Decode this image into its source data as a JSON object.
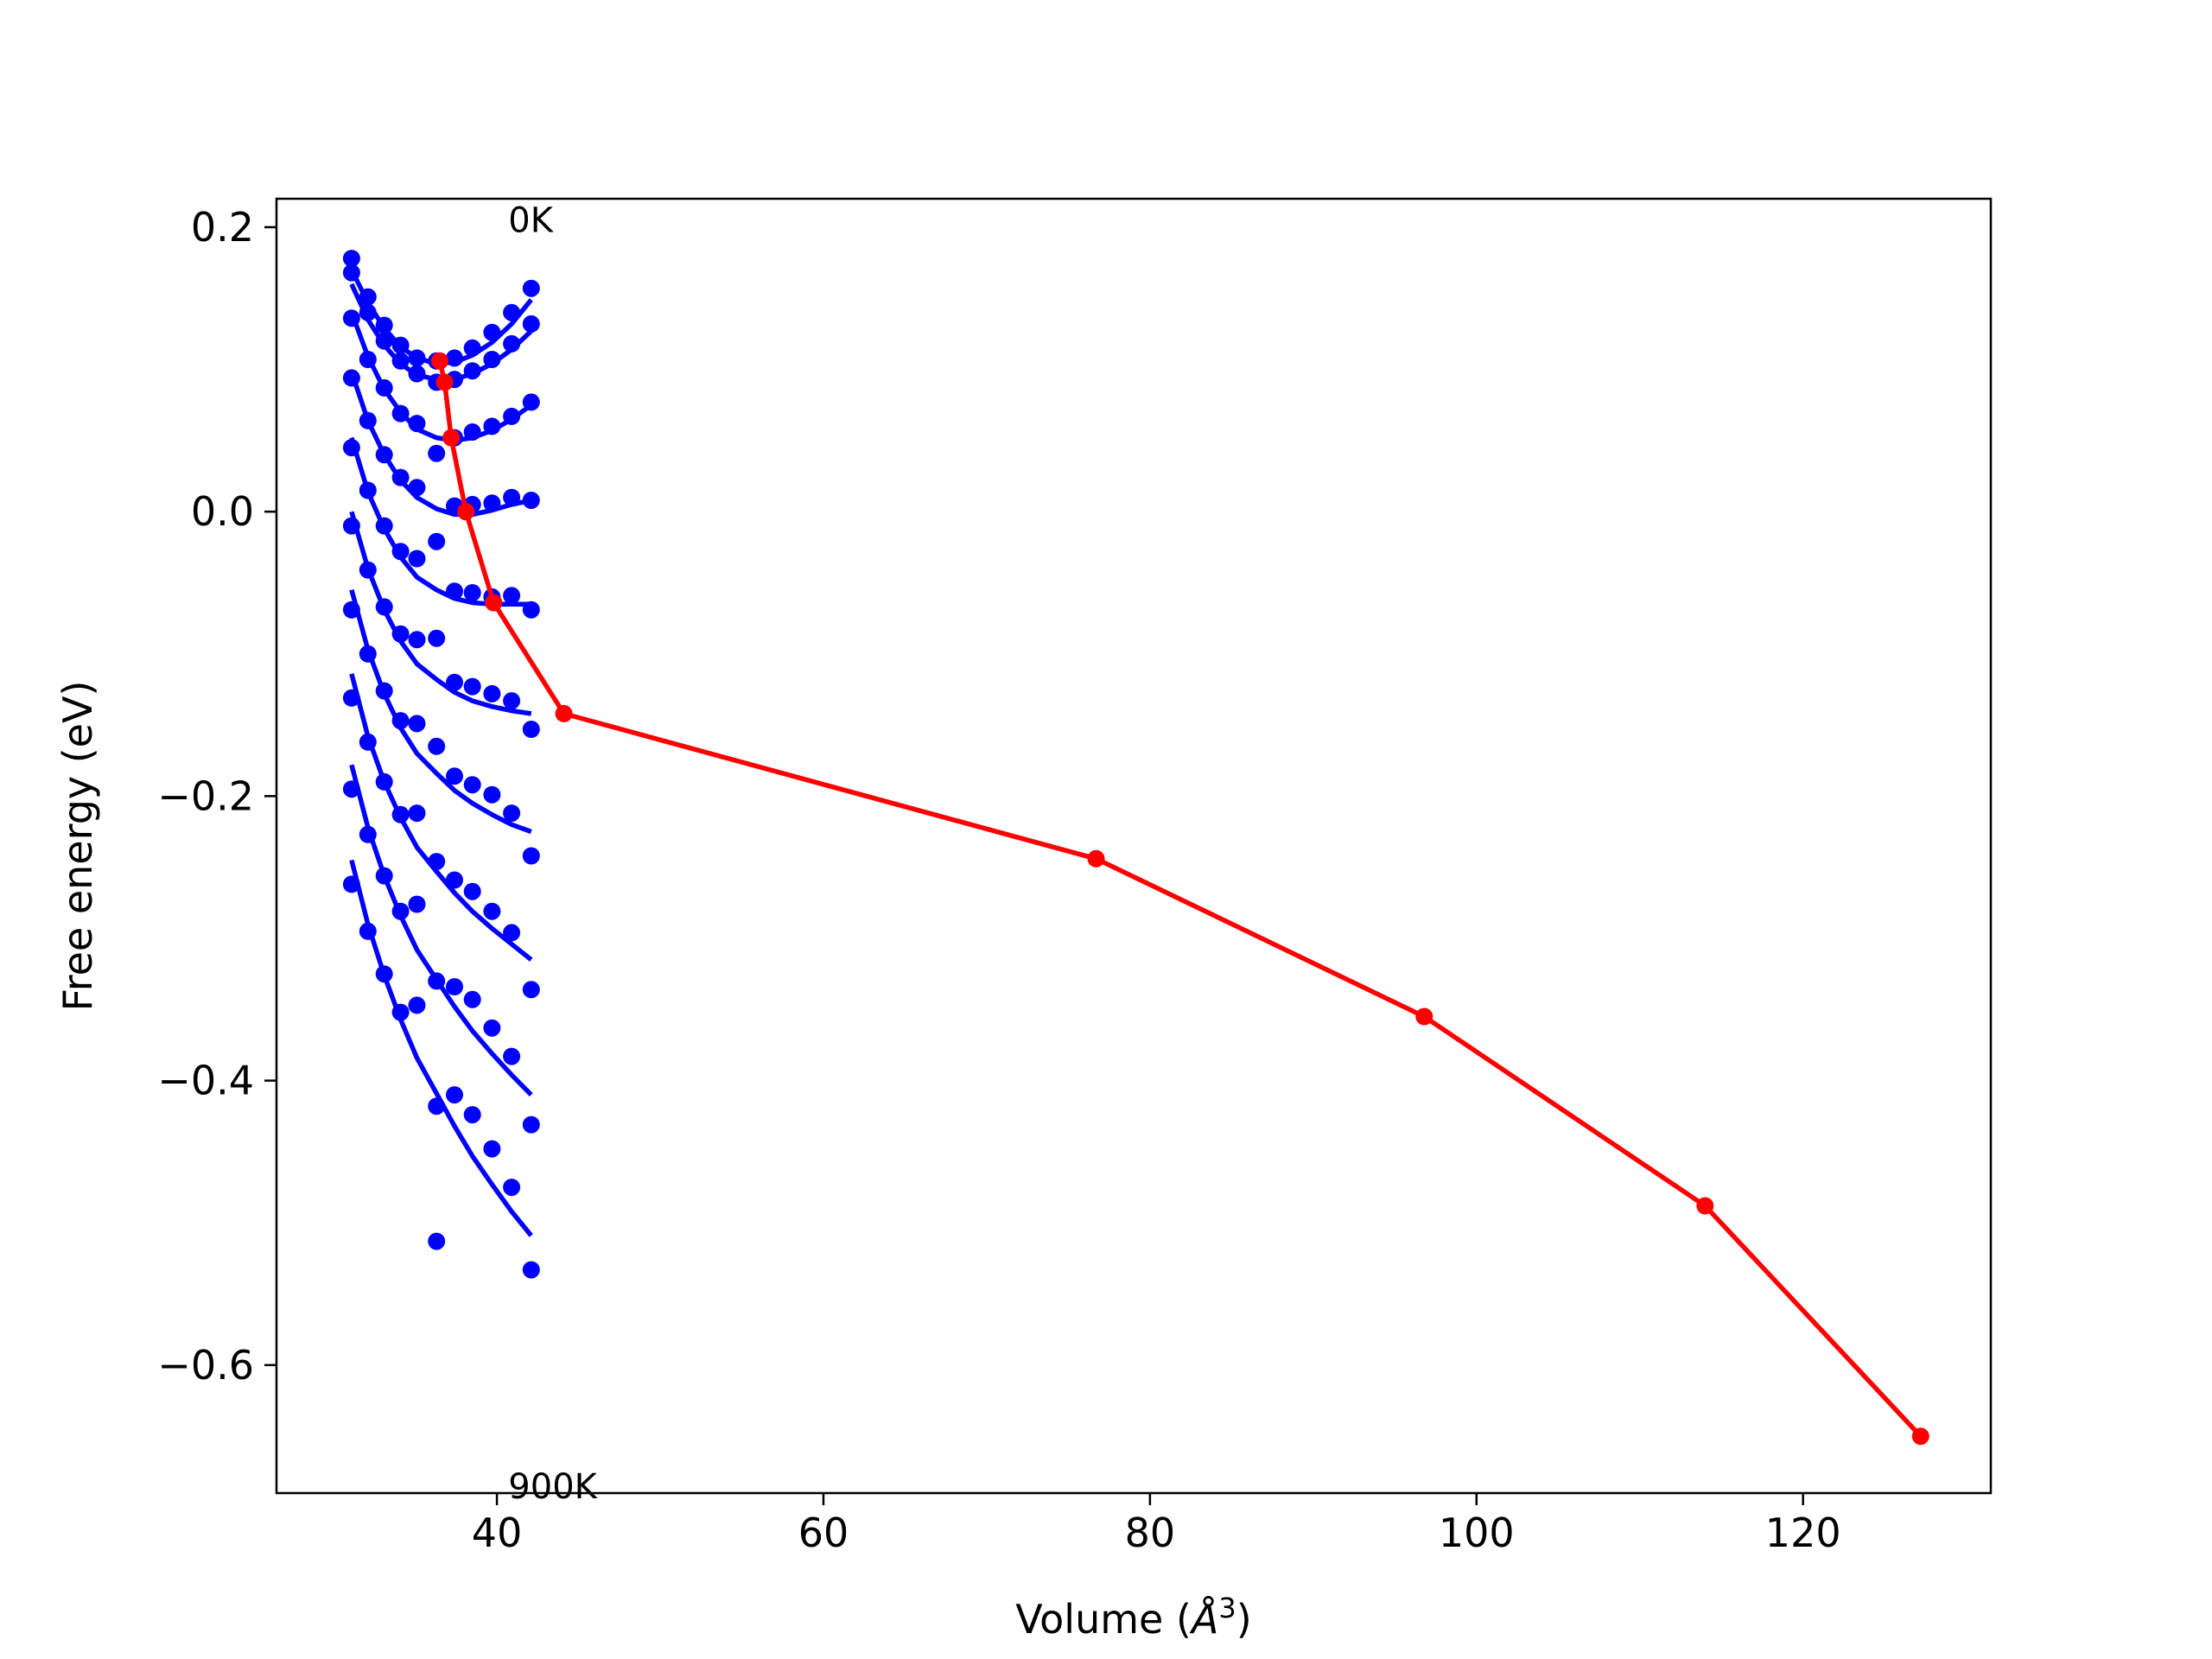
{
  "chart_data": {
    "type": "scatter",
    "title": "",
    "xlabel": "Volume",
    "xlabel_unit": "Å",
    "xlabel_unit_exp": "3",
    "ylabel": "Free energy (eV)",
    "xlim": [
      26.5,
      131.5
    ],
    "ylim": [
      -0.69,
      0.22
    ],
    "xticks": [
      40,
      60,
      80,
      100,
      120
    ],
    "yticks": [
      0.2,
      0.0,
      -0.2,
      -0.4,
      -0.6
    ],
    "ytick_labels": [
      "0.2",
      "0.0",
      "−0.2",
      "−0.4",
      "−0.6"
    ],
    "annotations": [
      {
        "text": "0K",
        "x": 40.7,
        "y": 0.205
      },
      {
        "text": "900K",
        "x": 40.7,
        "y": -0.685
      }
    ],
    "volumes": [
      31.1,
      32.1,
      33.1,
      34.1,
      35.1,
      36.3,
      37.4,
      38.5,
      39.7,
      40.9,
      42.1
    ],
    "series": [
      {
        "values": [
          0.178,
          0.151,
          0.131,
          0.117,
          0.108,
          0.106,
          0.108,
          0.115,
          0.126,
          0.14,
          0.157
        ],
        "fit": [
          0.17,
          0.147,
          0.129,
          0.116,
          0.108,
          0.104,
          0.105,
          0.11,
          0.119,
          0.132,
          0.149
        ]
      },
      {
        "values": [
          0.168,
          0.14,
          0.12,
          0.106,
          0.097,
          0.091,
          0.093,
          0.099,
          0.107,
          0.118,
          0.132
        ],
        "fit": [
          0.16,
          0.135,
          0.117,
          0.104,
          0.096,
          0.093,
          0.093,
          0.097,
          0.104,
          0.114,
          0.127
        ]
      },
      {
        "values": [
          0.136,
          0.107,
          0.087,
          0.069,
          0.062,
          0.041,
          0.052,
          0.056,
          0.06,
          0.067,
          0.077
        ],
        "fit": [
          0.14,
          0.109,
          0.086,
          0.07,
          0.058,
          0.052,
          0.05,
          0.052,
          0.057,
          0.065,
          0.075
        ]
      },
      {
        "values": [
          0.094,
          0.064,
          0.04,
          0.024,
          0.017,
          -0.021,
          0.004,
          0.005,
          0.006,
          0.01,
          0.008
        ],
        "fit": [
          0.098,
          0.064,
          0.04,
          0.022,
          0.01,
          0.002,
          -0.002,
          -0.002,
          0.001,
          0.005,
          0.008
        ]
      },
      {
        "values": [
          0.045,
          0.015,
          -0.01,
          -0.028,
          -0.033,
          -0.089,
          -0.056,
          -0.057,
          -0.06,
          -0.059,
          -0.069
        ],
        "fit": [
          0.052,
          0.014,
          -0.012,
          -0.032,
          -0.046,
          -0.055,
          -0.061,
          -0.064,
          -0.065,
          -0.065,
          -0.065
        ]
      },
      {
        "values": [
          -0.01,
          -0.041,
          -0.067,
          -0.086,
          -0.09,
          -0.165,
          -0.12,
          -0.123,
          -0.128,
          -0.133,
          -0.153
        ],
        "fit": [
          0.0,
          -0.04,
          -0.069,
          -0.091,
          -0.107,
          -0.118,
          -0.127,
          -0.133,
          -0.137,
          -0.14,
          -0.142
        ]
      },
      {
        "values": [
          -0.069,
          -0.1,
          -0.126,
          -0.147,
          -0.149,
          -0.246,
          -0.186,
          -0.192,
          -0.199,
          -0.212,
          -0.242
        ],
        "fit": [
          -0.055,
          -0.097,
          -0.128,
          -0.152,
          -0.17,
          -0.184,
          -0.196,
          -0.205,
          -0.213,
          -0.22,
          -0.225
        ]
      },
      {
        "values": [
          -0.131,
          -0.162,
          -0.19,
          -0.213,
          -0.212,
          -0.33,
          -0.259,
          -0.267,
          -0.281,
          -0.296,
          -0.336
        ],
        "fit": [
          -0.114,
          -0.158,
          -0.19,
          -0.215,
          -0.236,
          -0.253,
          -0.268,
          -0.281,
          -0.293,
          -0.304,
          -0.315
        ]
      },
      {
        "values": [
          -0.195,
          -0.227,
          -0.256,
          -0.281,
          -0.276,
          -0.418,
          -0.334,
          -0.343,
          -0.363,
          -0.383,
          -0.431
        ],
        "fit": [
          -0.178,
          -0.222,
          -0.256,
          -0.284,
          -0.308,
          -0.329,
          -0.348,
          -0.365,
          -0.381,
          -0.396,
          -0.41
        ]
      },
      {
        "values": [
          -0.262,
          -0.295,
          -0.325,
          -0.352,
          -0.347,
          -0.513,
          -0.41,
          -0.424,
          -0.448,
          -0.475,
          -0.533
        ],
        "fit": [
          -0.245,
          -0.29,
          -0.326,
          -0.357,
          -0.384,
          -0.409,
          -0.432,
          -0.453,
          -0.473,
          -0.492,
          -0.509
        ]
      }
    ],
    "minima_line": {
      "x": [
        36.5,
        36.8,
        37.2,
        38.1,
        39.8,
        44.1,
        76.7,
        96.8,
        114.0,
        127.2
      ],
      "y": [
        0.106,
        0.091,
        0.052,
        0.0,
        -0.064,
        -0.142,
        -0.244,
        -0.355,
        -0.488,
        -0.65
      ]
    },
    "colors": {
      "points": "#0000ff",
      "minima": "#ff0000",
      "axes": "#000000"
    }
  }
}
